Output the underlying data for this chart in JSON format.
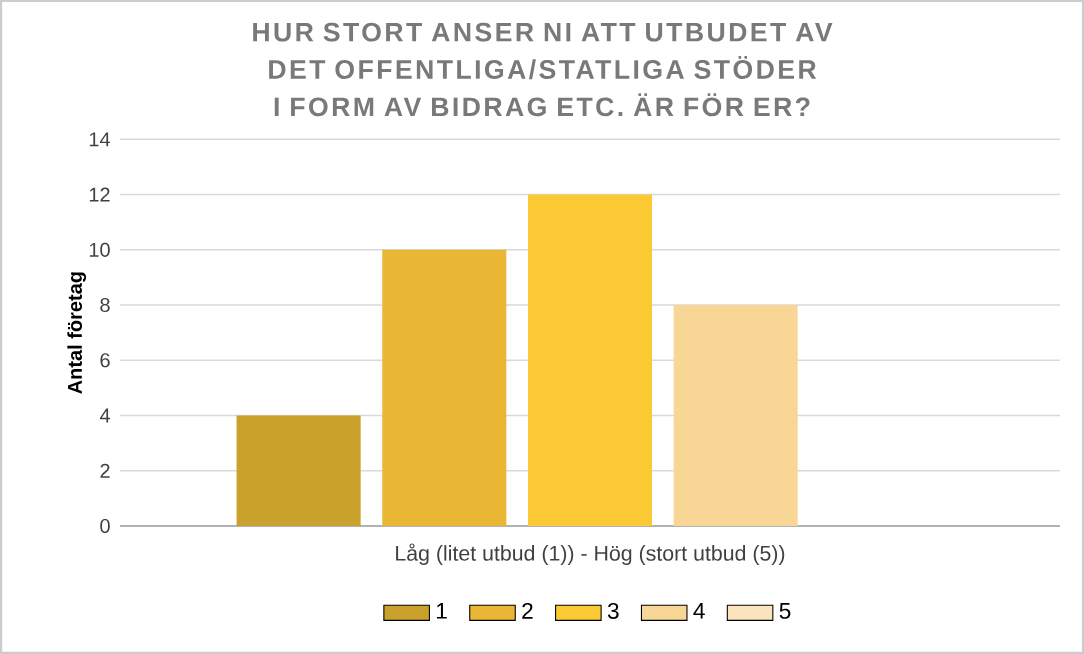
{
  "chart_data": {
    "type": "bar",
    "title": "HUR STORT ANSER NI ATT UTBUDET AV DET OFFENTLIGA/STATLIGA STÖDER I FORM AV BIDRAG ETC. ÄR FÖR ER?",
    "ylabel": "Antal företag",
    "categories": [
      "Låg (litet utbud (1)) - Hög (stort utbud (5))"
    ],
    "series": [
      {
        "name": "1",
        "color": "#c9a12b",
        "values": [
          4
        ]
      },
      {
        "name": "2",
        "color": "#e9b733",
        "values": [
          10
        ]
      },
      {
        "name": "3",
        "color": "#fac934",
        "values": [
          12
        ]
      },
      {
        "name": "4",
        "color": "#f8d796",
        "values": [
          8
        ]
      },
      {
        "name": "5",
        "color": "#fbe4bd",
        "values": [
          0
        ]
      }
    ],
    "ylim": [
      0,
      14
    ],
    "yticks": [
      0,
      2,
      4,
      6,
      8,
      10,
      12,
      14
    ],
    "grid": "y",
    "legend": "bottom"
  }
}
